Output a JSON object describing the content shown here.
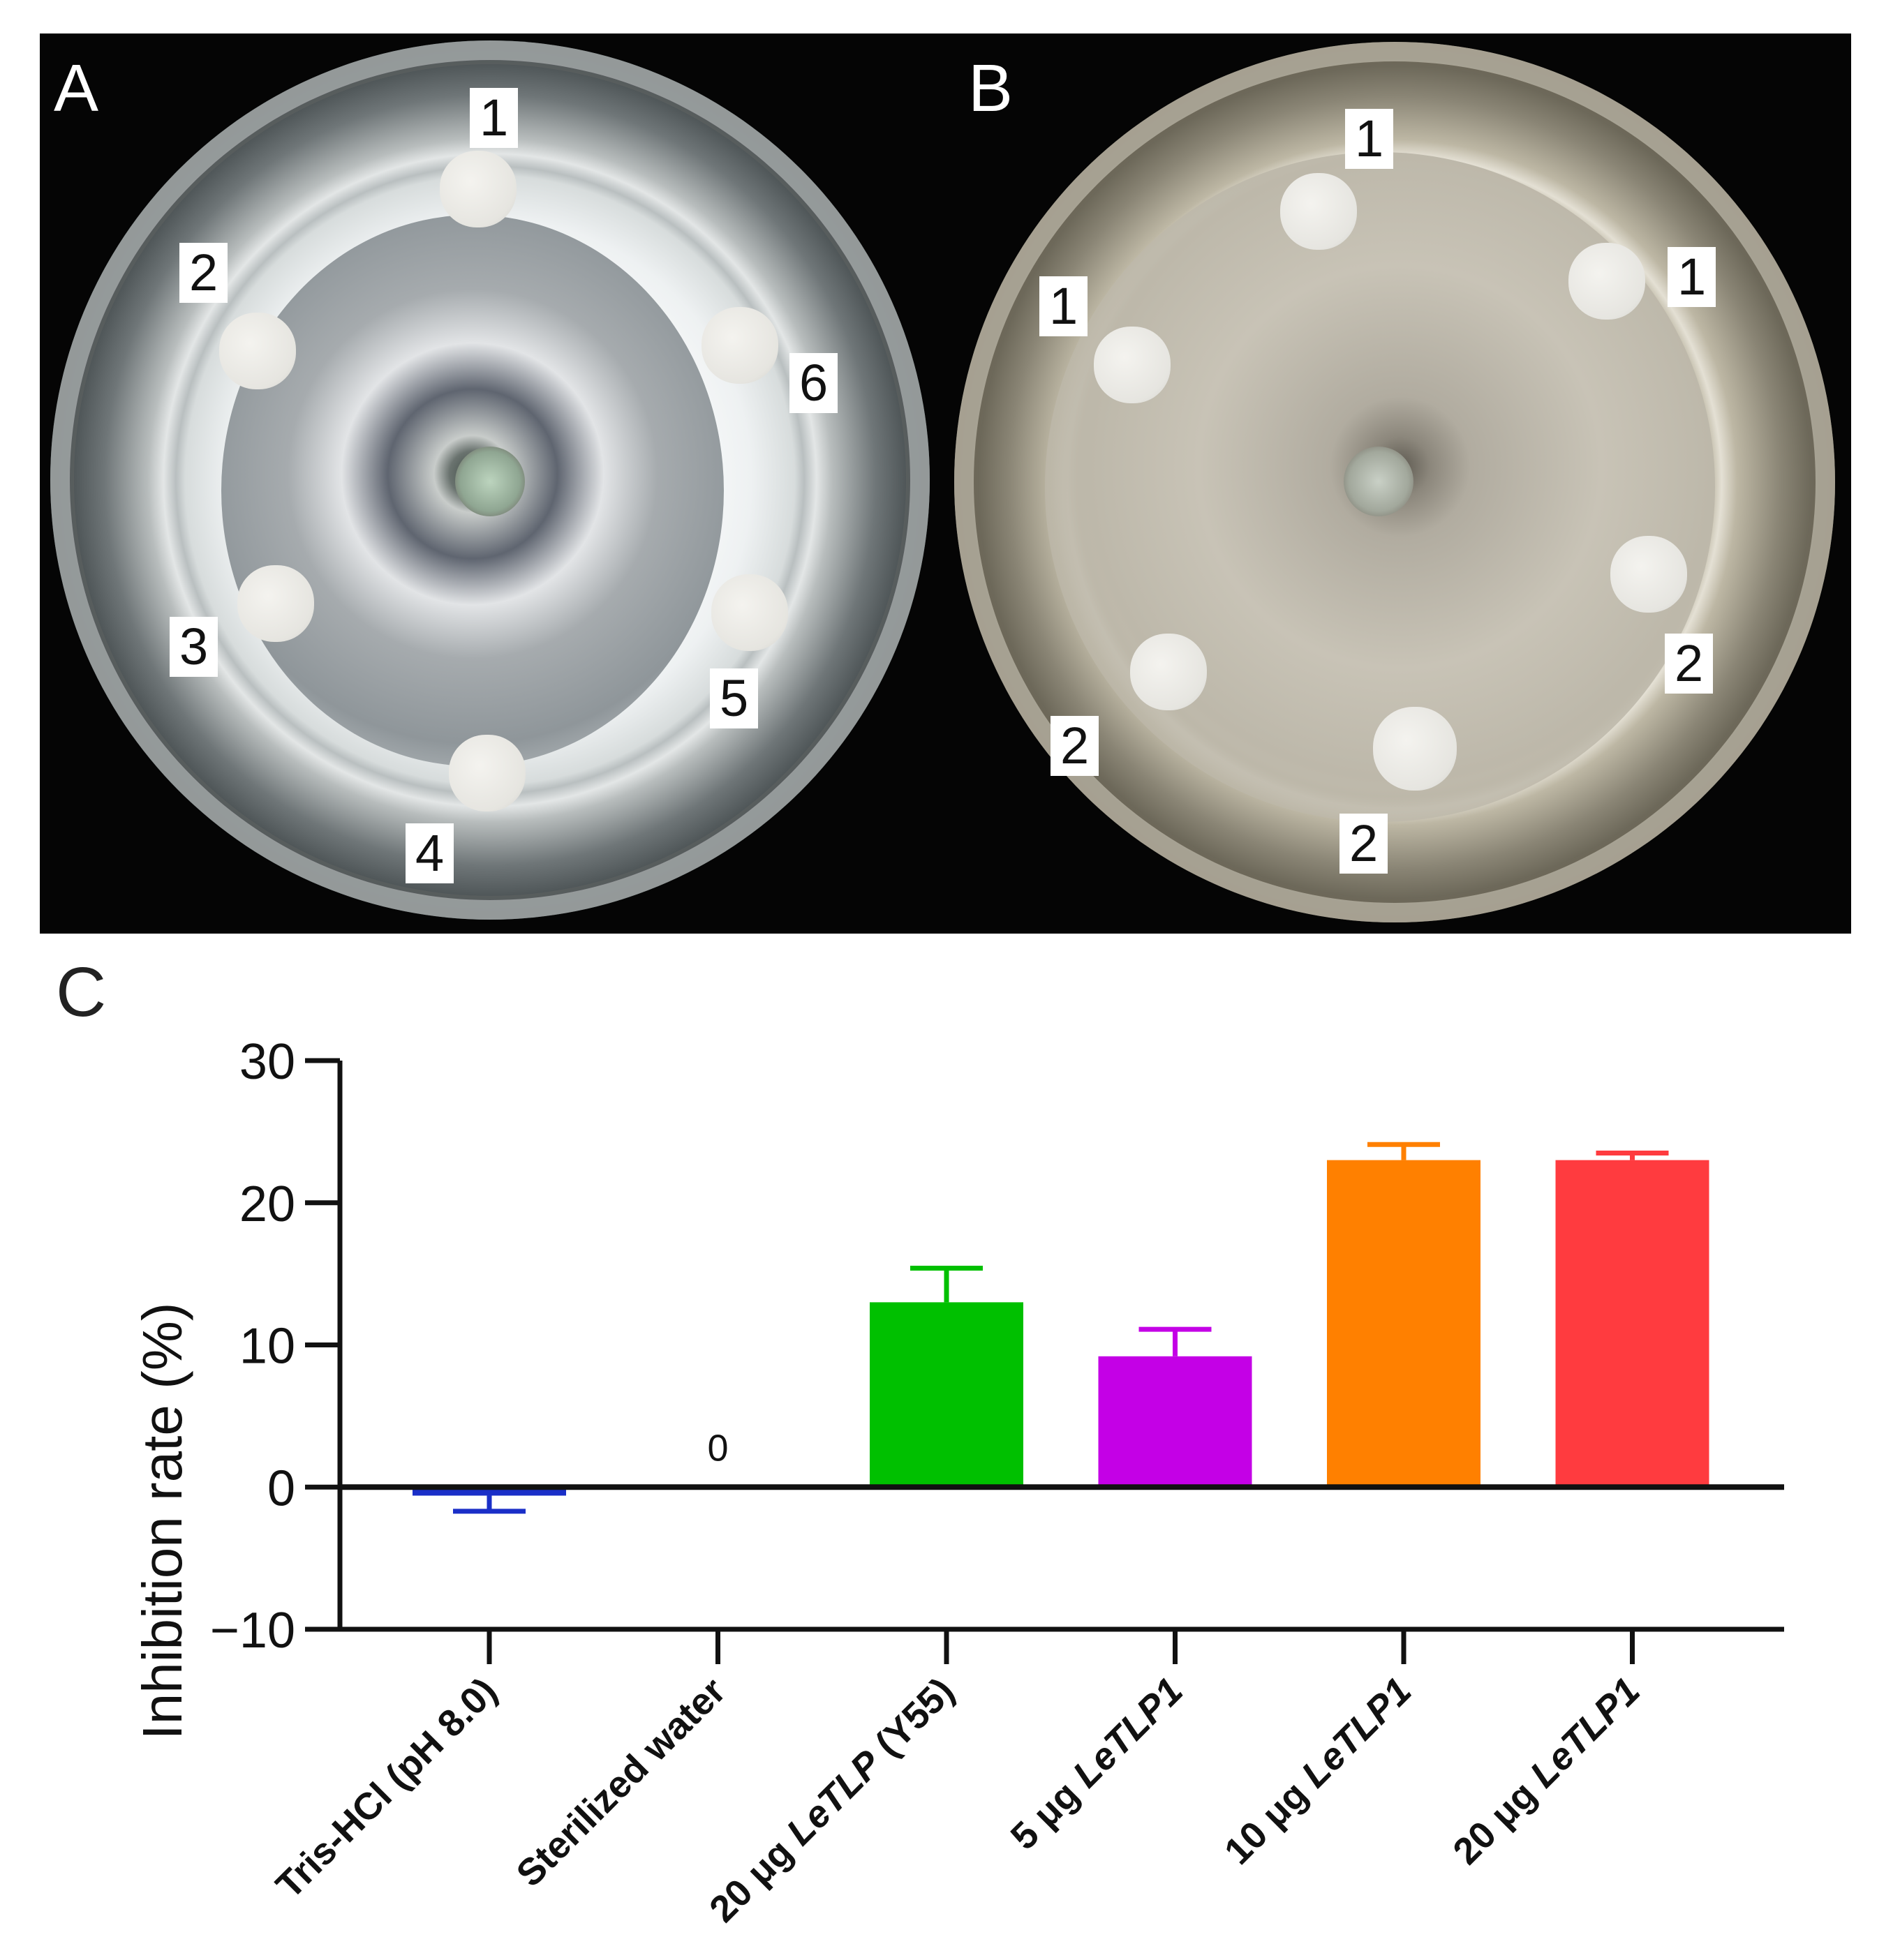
{
  "panels": {
    "a": {
      "letter": "A",
      "disc_tags": [
        "1",
        "2",
        "3",
        "4",
        "5",
        "6"
      ]
    },
    "b": {
      "letter": "B",
      "disc_tags": [
        "1",
        "1",
        "1",
        "2",
        "2",
        "2"
      ]
    },
    "c": {
      "letter": "C"
    }
  },
  "colors": {
    "tris": "#1a2fc8",
    "water": "#000000",
    "y55": "#00c000",
    "tlp5": "#c400e6",
    "tlp10": "#ff8000",
    "tlp20": "#ff3b3f"
  },
  "chart_data": {
    "type": "bar",
    "ylabel": "Inhibition rate (%)",
    "ylim": [
      -10,
      30
    ],
    "yticks": [
      "30",
      "20",
      "10",
      "0",
      "−10"
    ],
    "categories": [
      {
        "pre": "Tris-HCl (pH 8.0)",
        "ital": "",
        "post": ""
      },
      {
        "pre": "Sterilized water",
        "ital": "",
        "post": ""
      },
      {
        "pre": "20 μg ",
        "ital": "LeTLP",
        "post": " (Y55)"
      },
      {
        "pre": "5 μg ",
        "ital": "LeTLP1",
        "post": ""
      },
      {
        "pre": "10 μg ",
        "ital": "LeTLP1",
        "post": ""
      },
      {
        "pre": "20 μg ",
        "ital": "LeTLP1",
        "post": ""
      }
    ],
    "values": [
      -0.6,
      0,
      13.0,
      9.2,
      23.0,
      23.0
    ],
    "errors": [
      1.1,
      0,
      2.4,
      1.9,
      1.1,
      0.5
    ],
    "bar_colors": [
      "#1a2fc8",
      "#000000",
      "#00c000",
      "#c400e6",
      "#ff8000",
      "#ff3b3f"
    ],
    "annotations": [
      {
        "category_index": 1,
        "text": "0"
      }
    ],
    "grid": false,
    "legend": "none"
  }
}
